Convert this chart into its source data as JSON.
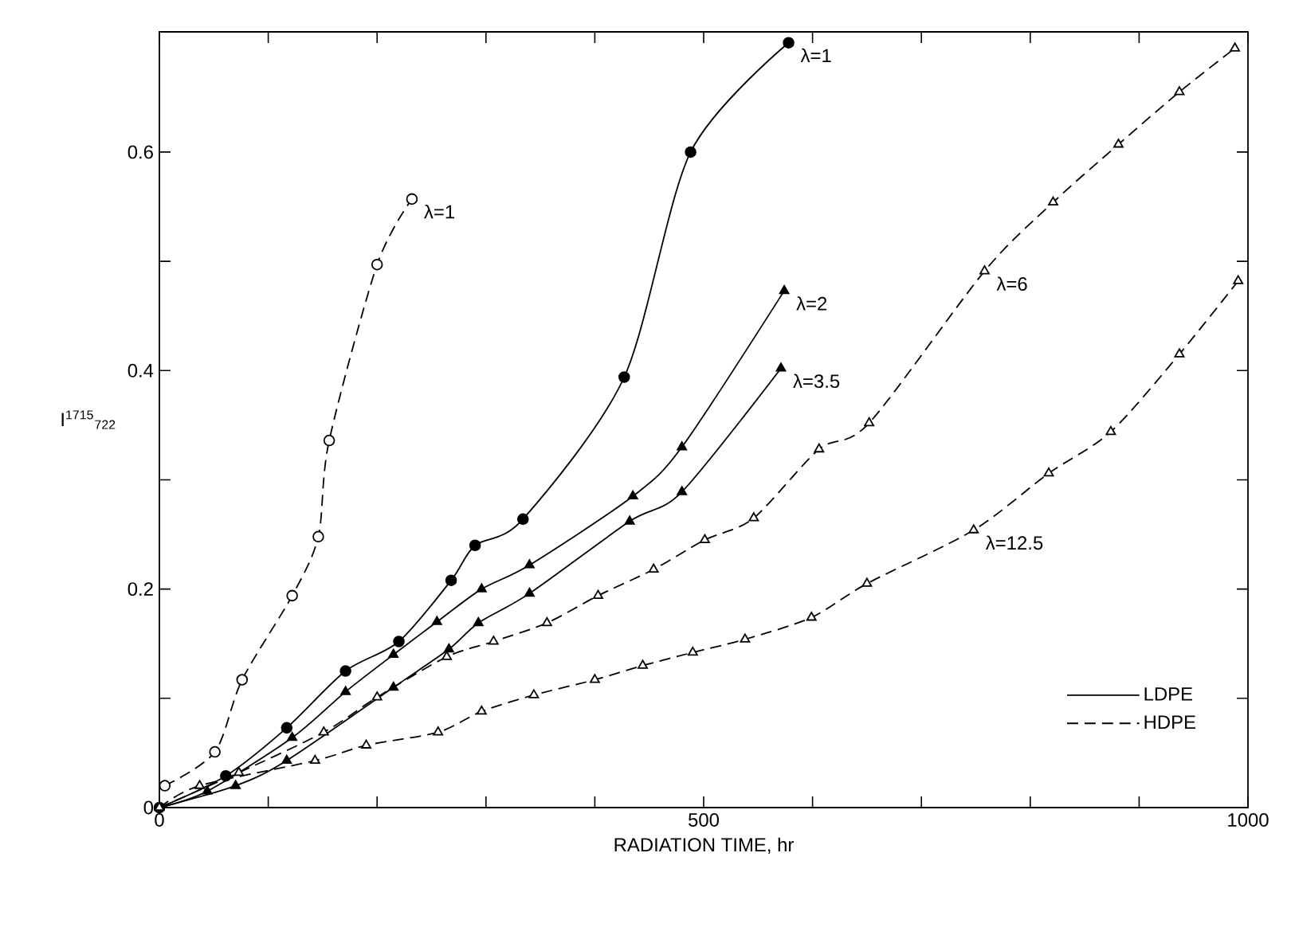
{
  "chart_data": {
    "type": "line",
    "xlabel": "RADIATION TIME, hr",
    "ylabel": "I$^{1715}$$_{722}$",
    "xlim": [
      0,
      1000
    ],
    "ylim": [
      0,
      0.71
    ],
    "xticks": [
      0,
      {
        "value": 100,
        "label": null
      },
      {
        "value": 200,
        "label": null
      },
      {
        "value": 300,
        "label": null
      },
      {
        "value": 400,
        "label": null
      },
      500,
      {
        "value": 600,
        "label": null
      },
      {
        "value": 700,
        "label": null
      },
      {
        "value": 800,
        "label": null
      },
      {
        "value": 900,
        "label": null
      },
      1000
    ],
    "yticks": [
      0,
      {
        "value": 0.1,
        "label": null
      },
      0.2,
      {
        "value": 0.3,
        "label": null
      },
      0.4,
      {
        "value": 0.5,
        "label": null
      },
      0.6
    ],
    "grid": false,
    "legend": "bottom right",
    "series": [
      {
        "name": "LDPE",
        "color": "#000000",
        "marker": "circle",
        "line_style": "solid",
        "x": [
          0,
          61,
          117,
          171,
          220,
          268,
          290,
          334,
          427,
          488,
          578
        ],
        "values": [
          0,
          0.029,
          0.073,
          0.125,
          0.152,
          0.208,
          0.24,
          0.264,
          0.394,
          0.6,
          0.7
        ]
      },
      {
        "name": "HDPE",
        "color": "#000000",
        "marker": "circle",
        "line_style": "dashed",
        "x": [
          5,
          51,
          76,
          122,
          146,
          156,
          200,
          232
        ],
        "values": [
          0.02,
          0.051,
          0.117,
          0.194,
          0.248,
          0.336,
          0.497,
          0.557
        ]
      },
      {
        "color": "#000000",
        "marker": "triangle",
        "line_style": "solid",
        "x": [
          0,
          44,
          122,
          171,
          215,
          255,
          296,
          340,
          435,
          480,
          574
        ],
        "values": [
          0,
          0.015,
          0.064,
          0.106,
          0.14,
          0.17,
          0.2,
          0.222,
          0.285,
          0.33,
          0.473
        ]
      },
      {
        "color": "#000000",
        "marker": "triangle",
        "line_style": "solid",
        "x": [
          0,
          70,
          117,
          215,
          266,
          293,
          340,
          432,
          480,
          571
        ],
        "values": [
          0,
          0.02,
          0.043,
          0.11,
          0.145,
          0.169,
          0.196,
          0.262,
          0.289,
          0.402
        ]
      },
      {
        "color": "#000000",
        "marker": "triangle",
        "line_style": "dashed",
        "x": [
          0,
          73,
          151,
          200,
          264,
          307,
          356,
          403,
          454,
          501,
          546,
          606,
          652,
          758,
          821,
          881,
          937,
          988
        ],
        "values": [
          0,
          0.032,
          0.069,
          0.101,
          0.138,
          0.152,
          0.169,
          0.194,
          0.218,
          0.245,
          0.265,
          0.328,
          0.352,
          0.491,
          0.554,
          0.607,
          0.655,
          0.695
        ]
      },
      {
        "color": "#000000",
        "marker": "triangle",
        "line_style": "dashed",
        "x": [
          0,
          37,
          143,
          190,
          256,
          296,
          344,
          400,
          444,
          490,
          538,
          599,
          650,
          748,
          817,
          874,
          937,
          991
        ],
        "values": [
          0,
          0.02,
          0.043,
          0.057,
          0.069,
          0.088,
          0.103,
          0.117,
          0.13,
          0.142,
          0.154,
          0.174,
          0.205,
          0.254,
          0.306,
          0.344,
          0.415,
          0.482
        ]
      }
    ],
    "annotations": [
      {
        "text": "λ=1",
        "x": 232,
        "y": 0.557
      },
      {
        "text": "λ=1",
        "x": 578,
        "y": 0.7
      },
      {
        "text": "λ=2",
        "x": 574,
        "y": 0.473
      },
      {
        "text": "λ=3.5",
        "x": 571,
        "y": 0.402
      },
      {
        "text": "λ=6",
        "x": 758,
        "y": 0.491
      },
      {
        "text": "λ=12.5",
        "x": 748,
        "y": 0.254
      }
    ]
  }
}
